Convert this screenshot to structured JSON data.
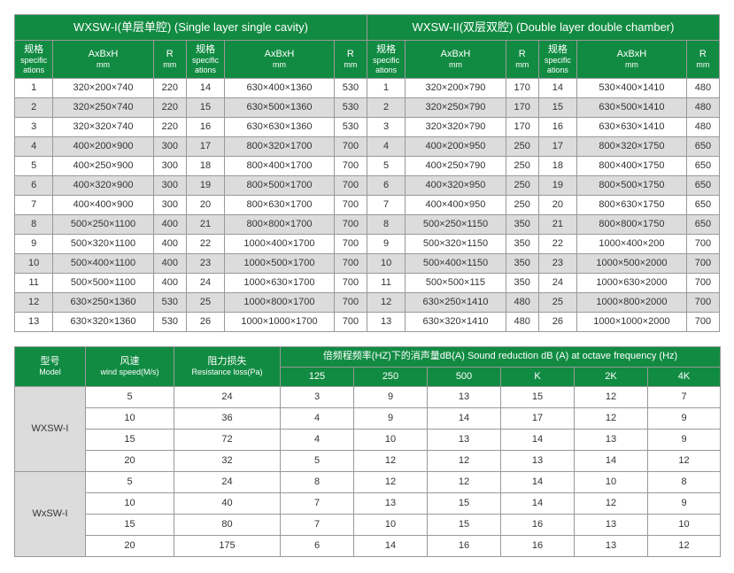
{
  "table1": {
    "titles": {
      "left": "WXSW-I(单层单腔)  (Single layer single cavity)",
      "right": "WXSW-II(双层双腔)  (Double layer double chamber)"
    },
    "col_headers": {
      "spec_cn": "规格",
      "spec_en": "specific ations",
      "axbxh": "AxBxH",
      "axbxh_sub": "mm",
      "r": "R",
      "r_sub": "mm"
    },
    "rows": [
      {
        "s1": "1",
        "d1": "320×200×740",
        "r1": "220",
        "s2": "14",
        "d2": "630×400×1360",
        "r2": "530",
        "s3": "1",
        "d3": "320×200×790",
        "r3": "170",
        "s4": "14",
        "d4": "530×400×1410",
        "r4": "480"
      },
      {
        "s1": "2",
        "d1": "320×250×740",
        "r1": "220",
        "s2": "15",
        "d2": "630×500×1360",
        "r2": "530",
        "s3": "2",
        "d3": "320×250×790",
        "r3": "170",
        "s4": "15",
        "d4": "630×500×1410",
        "r4": "480"
      },
      {
        "s1": "3",
        "d1": "320×320×740",
        "r1": "220",
        "s2": "16",
        "d2": "630×630×1360",
        "r2": "530",
        "s3": "3",
        "d3": "320×320×790",
        "r3": "170",
        "s4": "16",
        "d4": "630×630×1410",
        "r4": "480"
      },
      {
        "s1": "4",
        "d1": "400×200×900",
        "r1": "300",
        "s2": "17",
        "d2": "800×320×1700",
        "r2": "700",
        "s3": "4",
        "d3": "400×200×950",
        "r3": "250",
        "s4": "17",
        "d4": "800×320×1750",
        "r4": "650"
      },
      {
        "s1": "5",
        "d1": "400×250×900",
        "r1": "300",
        "s2": "18",
        "d2": "800×400×1700",
        "r2": "700",
        "s3": "5",
        "d3": "400×250×790",
        "r3": "250",
        "s4": "18",
        "d4": "800×400×1750",
        "r4": "650"
      },
      {
        "s1": "6",
        "d1": "400×320×900",
        "r1": "300",
        "s2": "19",
        "d2": "800×500×1700",
        "r2": "700",
        "s3": "6",
        "d3": "400×320×950",
        "r3": "250",
        "s4": "19",
        "d4": "800×500×1750",
        "r4": "650"
      },
      {
        "s1": "7",
        "d1": "400×400×900",
        "r1": "300",
        "s2": "20",
        "d2": "800×630×1700",
        "r2": "700",
        "s3": "7",
        "d3": "400×400×950",
        "r3": "250",
        "s4": "20",
        "d4": "800×630×1750",
        "r4": "650"
      },
      {
        "s1": "8",
        "d1": "500×250×1100",
        "r1": "400",
        "s2": "21",
        "d2": "800×800×1700",
        "r2": "700",
        "s3": "8",
        "d3": "500×250×1150",
        "r3": "350",
        "s4": "21",
        "d4": "800×800×1750",
        "r4": "650"
      },
      {
        "s1": "9",
        "d1": "500×320×1100",
        "r1": "400",
        "s2": "22",
        "d2": "1000×400×1700",
        "r2": "700",
        "s3": "9",
        "d3": "500×320×1150",
        "r3": "350",
        "s4": "22",
        "d4": "1000×400×200",
        "r4": "700"
      },
      {
        "s1": "10",
        "d1": "500×400×1100",
        "r1": "400",
        "s2": "23",
        "d2": "1000×500×1700",
        "r2": "700",
        "s3": "10",
        "d3": "500×400×1150",
        "r3": "350",
        "s4": "23",
        "d4": "1000×500×2000",
        "r4": "700"
      },
      {
        "s1": "11",
        "d1": "500×500×1100",
        "r1": "400",
        "s2": "24",
        "d2": "1000×630×1700",
        "r2": "700",
        "s3": "11",
        "d3": "500×500×115",
        "r3": "350",
        "s4": "24",
        "d4": "1000×630×2000",
        "r4": "700"
      },
      {
        "s1": "12",
        "d1": "630×250×1360",
        "r1": "530",
        "s2": "25",
        "d2": "1000×800×1700",
        "r2": "700",
        "s3": "12",
        "d3": "630×250×1410",
        "r3": "480",
        "s4": "25",
        "d4": "1000×800×2000",
        "r4": "700"
      },
      {
        "s1": "13",
        "d1": "630×320×1360",
        "r1": "530",
        "s2": "26",
        "d2": "1000×1000×1700",
        "r2": "700",
        "s3": "13",
        "d3": "630×320×1410",
        "r3": "480",
        "s4": "26",
        "d4": "1000×1000×2000",
        "r4": "700"
      }
    ]
  },
  "table2": {
    "headers": {
      "model_cn": "型号",
      "model_en": "Model",
      "wind_cn": "风速",
      "wind_en": "wind speed(M/s)",
      "res_cn": "阻力损失",
      "res_en": "Resistance loss(Pa)",
      "freq_title": "倍频程频率(HZ)下的消声量dB(A)  Sound reduction dB (A) at octave frequency (Hz)",
      "f125": "125",
      "f250": "250",
      "f500": "500",
      "fk": "K",
      "f2k": "2K",
      "f4k": "4K"
    },
    "groups": [
      {
        "model": "WXSW-I",
        "rows": [
          {
            "ws": "5",
            "rl": "24",
            "v125": "3",
            "v250": "9",
            "v500": "13",
            "vk": "15",
            "v2k": "12",
            "v4k": "7"
          },
          {
            "ws": "10",
            "rl": "36",
            "v125": "4",
            "v250": "9",
            "v500": "14",
            "vk": "17",
            "v2k": "12",
            "v4k": "9"
          },
          {
            "ws": "15",
            "rl": "72",
            "v125": "4",
            "v250": "10",
            "v500": "13",
            "vk": "14",
            "v2k": "13",
            "v4k": "9"
          },
          {
            "ws": "20",
            "rl": "32",
            "v125": "5",
            "v250": "12",
            "v500": "12",
            "vk": "13",
            "v2k": "14",
            "v4k": "12"
          }
        ]
      },
      {
        "model": "WxSW-I",
        "rows": [
          {
            "ws": "5",
            "rl": "24",
            "v125": "8",
            "v250": "12",
            "v500": "12",
            "vk": "14",
            "v2k": "10",
            "v4k": "8"
          },
          {
            "ws": "10",
            "rl": "40",
            "v125": "7",
            "v250": "13",
            "v500": "15",
            "vk": "14",
            "v2k": "12",
            "v4k": "9"
          },
          {
            "ws": "15",
            "rl": "80",
            "v125": "7",
            "v250": "10",
            "v500": "15",
            "vk": "16",
            "v2k": "13",
            "v4k": "10"
          },
          {
            "ws": "20",
            "rl": "175",
            "v125": "6",
            "v250": "14",
            "v500": "16",
            "vk": "16",
            "v2k": "13",
            "v4k": "12"
          }
        ]
      }
    ]
  }
}
